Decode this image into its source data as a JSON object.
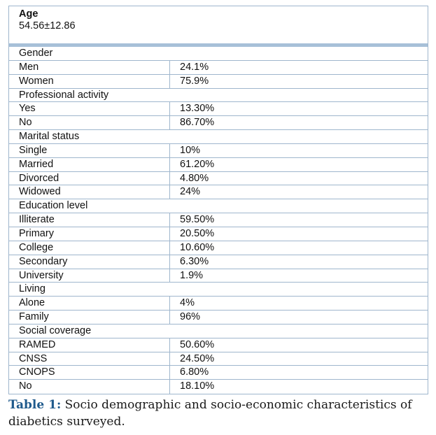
{
  "age": {
    "label": "Age",
    "value": "54.56±12.86"
  },
  "rows": [
    {
      "type": "header",
      "label": "Gender"
    },
    {
      "type": "data",
      "label": "Men",
      "value": "24.1%"
    },
    {
      "type": "data",
      "label": "Women",
      "value": "75.9%"
    },
    {
      "type": "header",
      "label": "Professional activity"
    },
    {
      "type": "data",
      "label": "Yes",
      "value": "13.30%"
    },
    {
      "type": "data",
      "label": "No",
      "value": "86.70%"
    },
    {
      "type": "header",
      "label": "Marital status"
    },
    {
      "type": "data",
      "label": "Single",
      "value": "10%"
    },
    {
      "type": "data",
      "label": "Married",
      "value": "61.20%"
    },
    {
      "type": "data",
      "label": "Divorced",
      "value": "4.80%"
    },
    {
      "type": "data",
      "label": "Widowed",
      "value": "24%"
    },
    {
      "type": "header",
      "label": "Education level"
    },
    {
      "type": "data",
      "label": "Illiterate",
      "value": "59.50%"
    },
    {
      "type": "data",
      "label": "Primary",
      "value": "20.50%"
    },
    {
      "type": "data",
      "label": "College",
      "value": "10.60%"
    },
    {
      "type": "data",
      "label": "Secondary",
      "value": "6.30%"
    },
    {
      "type": "data",
      "label": "University",
      "value": "1.9%"
    },
    {
      "type": "header",
      "label": "Living"
    },
    {
      "type": "data",
      "label": "Alone",
      "value": "4%"
    },
    {
      "type": "data",
      "label": "Family",
      "value": "96%"
    },
    {
      "type": "header",
      "label": "Social coverage"
    },
    {
      "type": "data",
      "label": "RAMED",
      "value": "50.60%"
    },
    {
      "type": "data",
      "label": "CNSS",
      "value": "24.50%"
    },
    {
      "type": "data",
      "label": "CNOPS",
      "value": "6.80%"
    },
    {
      "type": "data",
      "label": "No",
      "value": "18.10%"
    }
  ],
  "caption": {
    "label": "Table 1:",
    "text": " Socio demographic and socio-economic characteristics of diabetics surveyed."
  }
}
